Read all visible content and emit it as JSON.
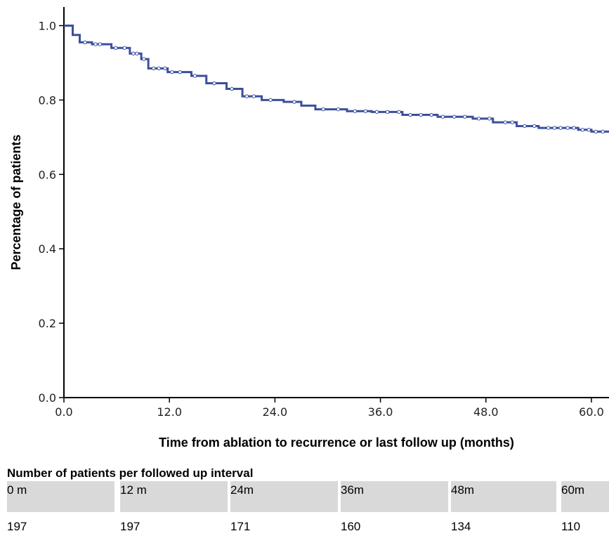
{
  "chart_data": {
    "type": "line",
    "step": true,
    "xlabel": "Time from ablation to recurrence or last follow up (months)",
    "ylabel": "Percentage of patients",
    "xlim": [
      0,
      62
    ],
    "ylim": [
      0,
      1.05
    ],
    "x_ticks": [
      "0.0",
      "12.0",
      "24.0",
      "36.0",
      "48.0",
      "60.0"
    ],
    "y_ticks": [
      "0.0",
      "0.2",
      "0.4",
      "0.6",
      "0.8",
      "1.0"
    ],
    "grid": false,
    "line_color": "#3b4f9c",
    "series": [
      {
        "x": [
          0,
          1,
          1.8,
          3.2,
          5.4,
          7.5,
          8.8,
          9.6,
          11.8,
          14.5,
          16.2,
          18.5,
          20.3,
          22.5,
          25,
          27,
          28.6,
          32.2,
          35,
          38.5,
          42.5,
          46.5,
          48.8,
          51.5,
          54,
          58.5,
          60,
          62
        ],
        "y": [
          1.0,
          0.975,
          0.955,
          0.95,
          0.94,
          0.925,
          0.91,
          0.885,
          0.875,
          0.865,
          0.845,
          0.83,
          0.81,
          0.8,
          0.795,
          0.785,
          0.775,
          0.77,
          0.768,
          0.76,
          0.755,
          0.75,
          0.74,
          0.73,
          0.725,
          0.72,
          0.715,
          0.715
        ],
        "censored_x": [
          2.4,
          3.6,
          4.1,
          5.9,
          6.9,
          7.9,
          8.3,
          9.1,
          10.2,
          10.8,
          11.5,
          12.3,
          13.2,
          14.9,
          17.1,
          19.1,
          20.8,
          21.6,
          23.5,
          26.2,
          29.5,
          31.2,
          33.1,
          34.3,
          35.6,
          36.8,
          38.1,
          39.4,
          40.6,
          41.8,
          43.1,
          44.4,
          45.6,
          47.2,
          48.4,
          50.2,
          51.0,
          52.4,
          53.5,
          55.1,
          55.8,
          56.5,
          57.3,
          58.0,
          59.0,
          59.7,
          60.5,
          61.3
        ]
      }
    ]
  },
  "table": {
    "title": "Number of patients per followed up interval",
    "headers": [
      "0 m",
      "12 m",
      "24m",
      "36m",
      "48m",
      "60m"
    ],
    "values": [
      "197",
      "197",
      "171",
      "160",
      "134",
      "110"
    ]
  }
}
